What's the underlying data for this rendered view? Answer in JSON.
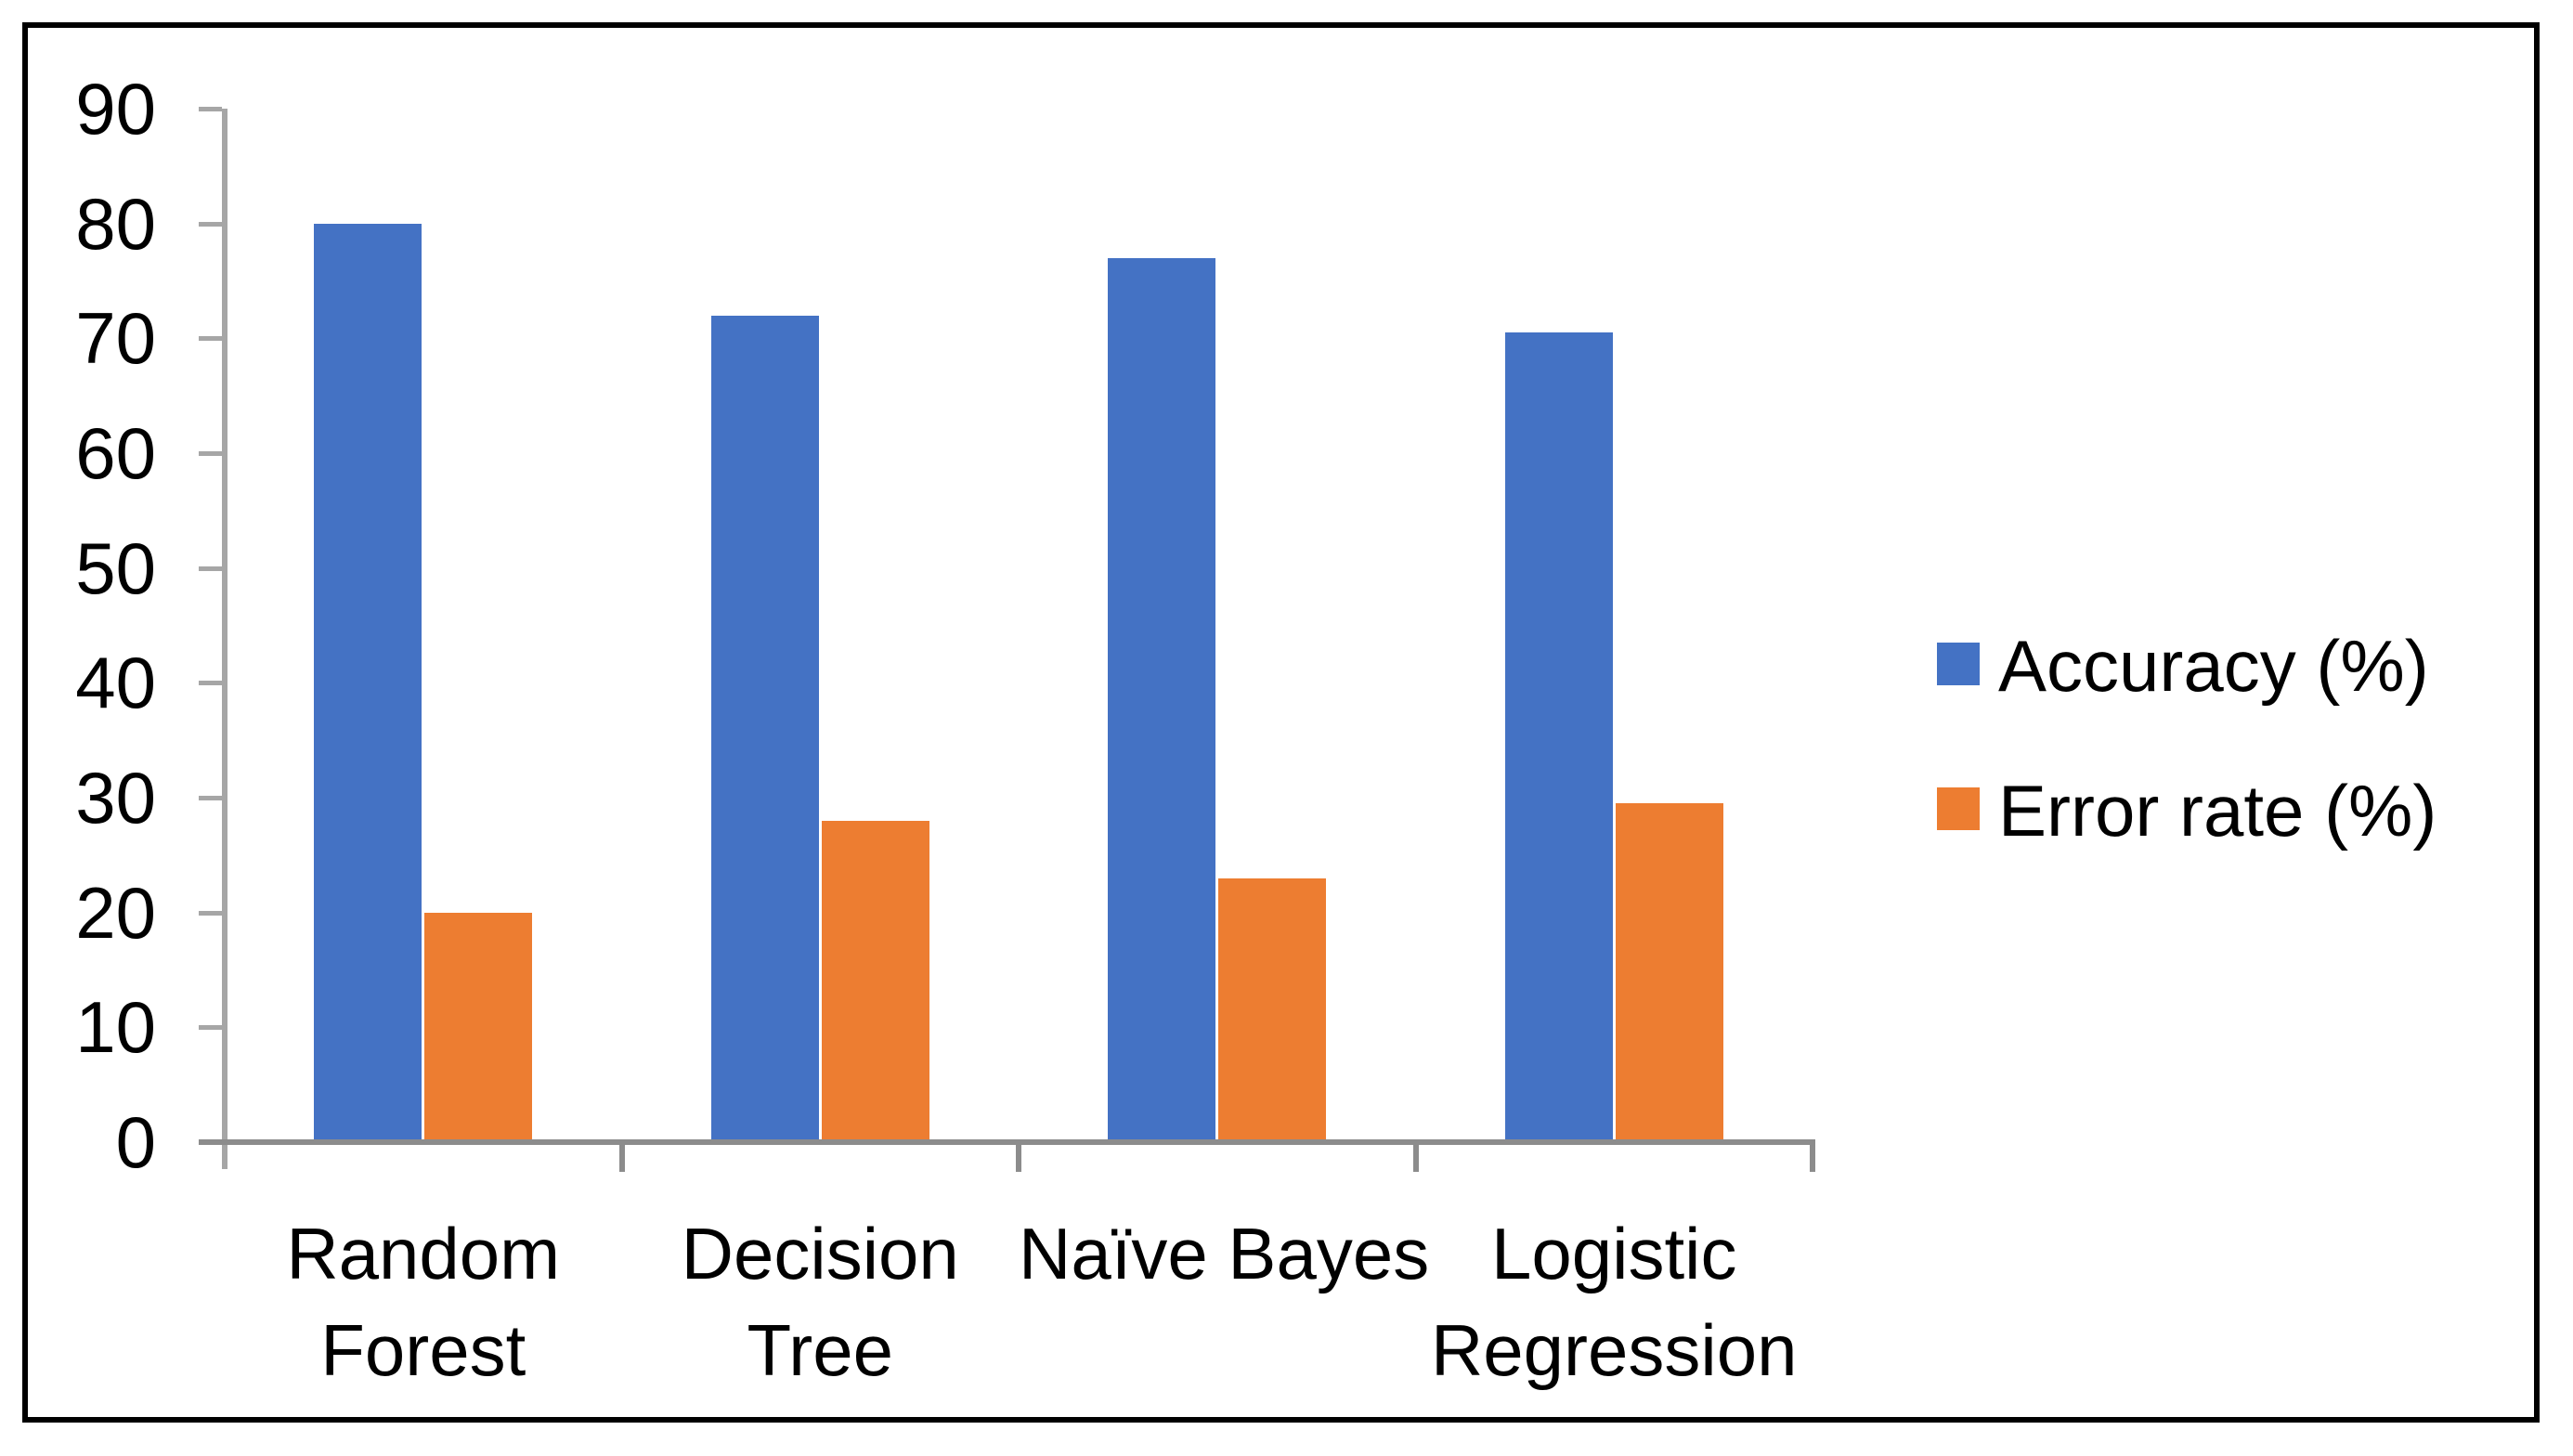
{
  "chart_data": {
    "type": "bar",
    "title": "",
    "xlabel": "",
    "ylabel": "",
    "categories": [
      "Random Forest",
      "Decision Tree",
      "Naïve Bayes",
      "Logistic Regression"
    ],
    "category_label_lines": [
      [
        "Random",
        "Forest"
      ],
      [
        "Decision",
        "Tree"
      ],
      [
        "Naïve Bayes"
      ],
      [
        "Logistic",
        "Regression"
      ]
    ],
    "series": [
      {
        "name": "Accuracy (%)",
        "color": "#4472C4",
        "values": [
          80,
          72,
          77,
          70.5
        ]
      },
      {
        "name": "Error rate (%)",
        "color": "#ED7D31",
        "values": [
          20,
          28,
          23,
          29.5
        ]
      }
    ],
    "ylim": [
      0,
      90
    ],
    "y_tick_interval": 10,
    "y_tick_labels": [
      "0",
      "10",
      "20",
      "30",
      "40",
      "50",
      "60",
      "70",
      "80",
      "90"
    ],
    "grid": false,
    "legend_position": "right"
  },
  "colors": {
    "background": "#FFFFFF",
    "frame_border": "#000000",
    "axis_line": "#A6A6A6",
    "baseline": "#8C8C8C",
    "tick_stub": "#A6A6A6",
    "text": "#000000",
    "series_accuracy": "#4472C4",
    "series_error_rate": "#ED7D31"
  }
}
